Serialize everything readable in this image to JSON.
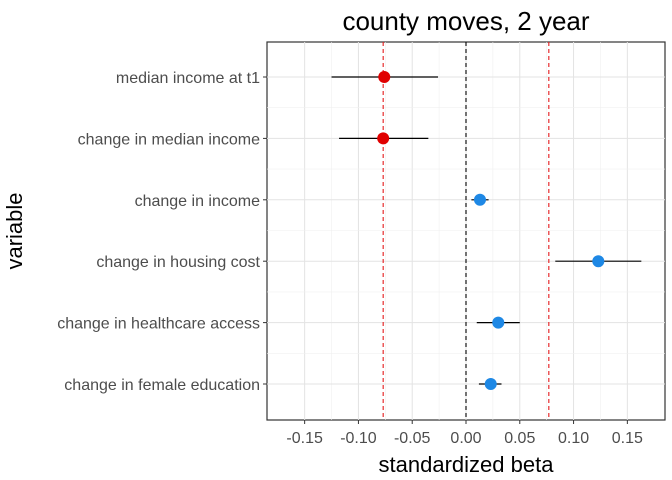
{
  "chart_data": {
    "type": "scatter",
    "title": "county moves, 2 year",
    "xlabel": "standardized beta",
    "ylabel": "variable",
    "xlim": [
      -0.185,
      0.185
    ],
    "x_ticks": [
      -0.15,
      -0.1,
      -0.05,
      0.0,
      0.05,
      0.1,
      0.15
    ],
    "x_tick_labels": [
      "-0.15",
      "-0.10",
      "-0.05",
      "0.00",
      "0.05",
      "0.10",
      "0.15"
    ],
    "grid": true,
    "reference_lines": [
      {
        "x": 0.0,
        "style": "dashed",
        "color": "#000000"
      },
      {
        "x": -0.077,
        "style": "dashed",
        "color": "#e41a1c"
      },
      {
        "x": 0.077,
        "style": "dashed",
        "color": "#e41a1c"
      }
    ],
    "points": [
      {
        "label": "median income at t1",
        "estimate": -0.076,
        "low": -0.125,
        "high": -0.026,
        "color": "#e00000"
      },
      {
        "label": "change in median income",
        "estimate": -0.077,
        "low": -0.118,
        "high": -0.035,
        "color": "#e00000"
      },
      {
        "label": "change in income",
        "estimate": 0.013,
        "low": 0.005,
        "high": 0.021,
        "color": "#1e88e5"
      },
      {
        "label": "change in housing cost",
        "estimate": 0.123,
        "low": 0.083,
        "high": 0.163,
        "color": "#1e88e5"
      },
      {
        "label": "change in healthcare access",
        "estimate": 0.03,
        "low": 0.01,
        "high": 0.05,
        "color": "#1e88e5"
      },
      {
        "label": "change in female education",
        "estimate": 0.023,
        "low": 0.012,
        "high": 0.033,
        "color": "#1e88e5"
      }
    ]
  }
}
